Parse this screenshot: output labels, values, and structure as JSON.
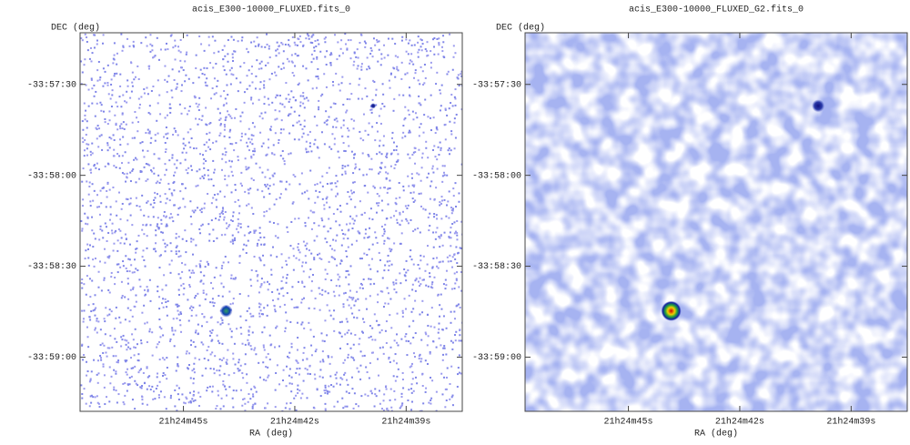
{
  "chart_data": [
    {
      "type": "image",
      "title": "acis_E300-10000_FLUXED.fits_0",
      "xlabel": "RA (deg)",
      "ylabel": "DEC (deg)",
      "style": "counts",
      "xlim": [
        321.1991,
        321.1562
      ],
      "ylim": [
        -33.9883,
        -33.9536
      ],
      "xticks": [
        {
          "value": 321.1875,
          "label": "21h24m45s"
        },
        {
          "value": 321.175,
          "label": "21h24m42s"
        },
        {
          "value": 321.1625,
          "label": "21h24m39s"
        }
      ],
      "yticks": [
        {
          "value": -33.958333,
          "label": "-33:57:30"
        },
        {
          "value": -33.966667,
          "label": "-33:58:00"
        },
        {
          "value": -33.975,
          "label": "-33:58:30"
        },
        {
          "value": -33.983333,
          "label": "-33:59:00"
        }
      ],
      "x": [
        321.1827,
        321.1662
      ],
      "y": [
        -33.9791,
        -33.9603
      ]
    },
    {
      "type": "image",
      "title": "acis_E300-10000_FLUXED_G2.fits_0",
      "xlabel": "RA (deg)",
      "ylabel": "DEC (deg)",
      "style": "smoothed",
      "xlim": [
        321.1991,
        321.1562
      ],
      "ylim": [
        -33.9883,
        -33.9536
      ],
      "xticks": [
        {
          "value": 321.1875,
          "label": "21h24m45s"
        },
        {
          "value": 321.175,
          "label": "21h24m42s"
        },
        {
          "value": 321.1625,
          "label": "21h24m39s"
        }
      ],
      "yticks": [
        {
          "value": -33.958333,
          "label": "-33:57:30"
        },
        {
          "value": -33.966667,
          "label": "-33:58:00"
        },
        {
          "value": -33.975,
          "label": "-33:58:30"
        },
        {
          "value": -33.983333,
          "label": "-33:59:00"
        }
      ],
      "x": [
        321.1827,
        321.1662
      ],
      "y": [
        -33.9791,
        -33.9603
      ]
    }
  ]
}
